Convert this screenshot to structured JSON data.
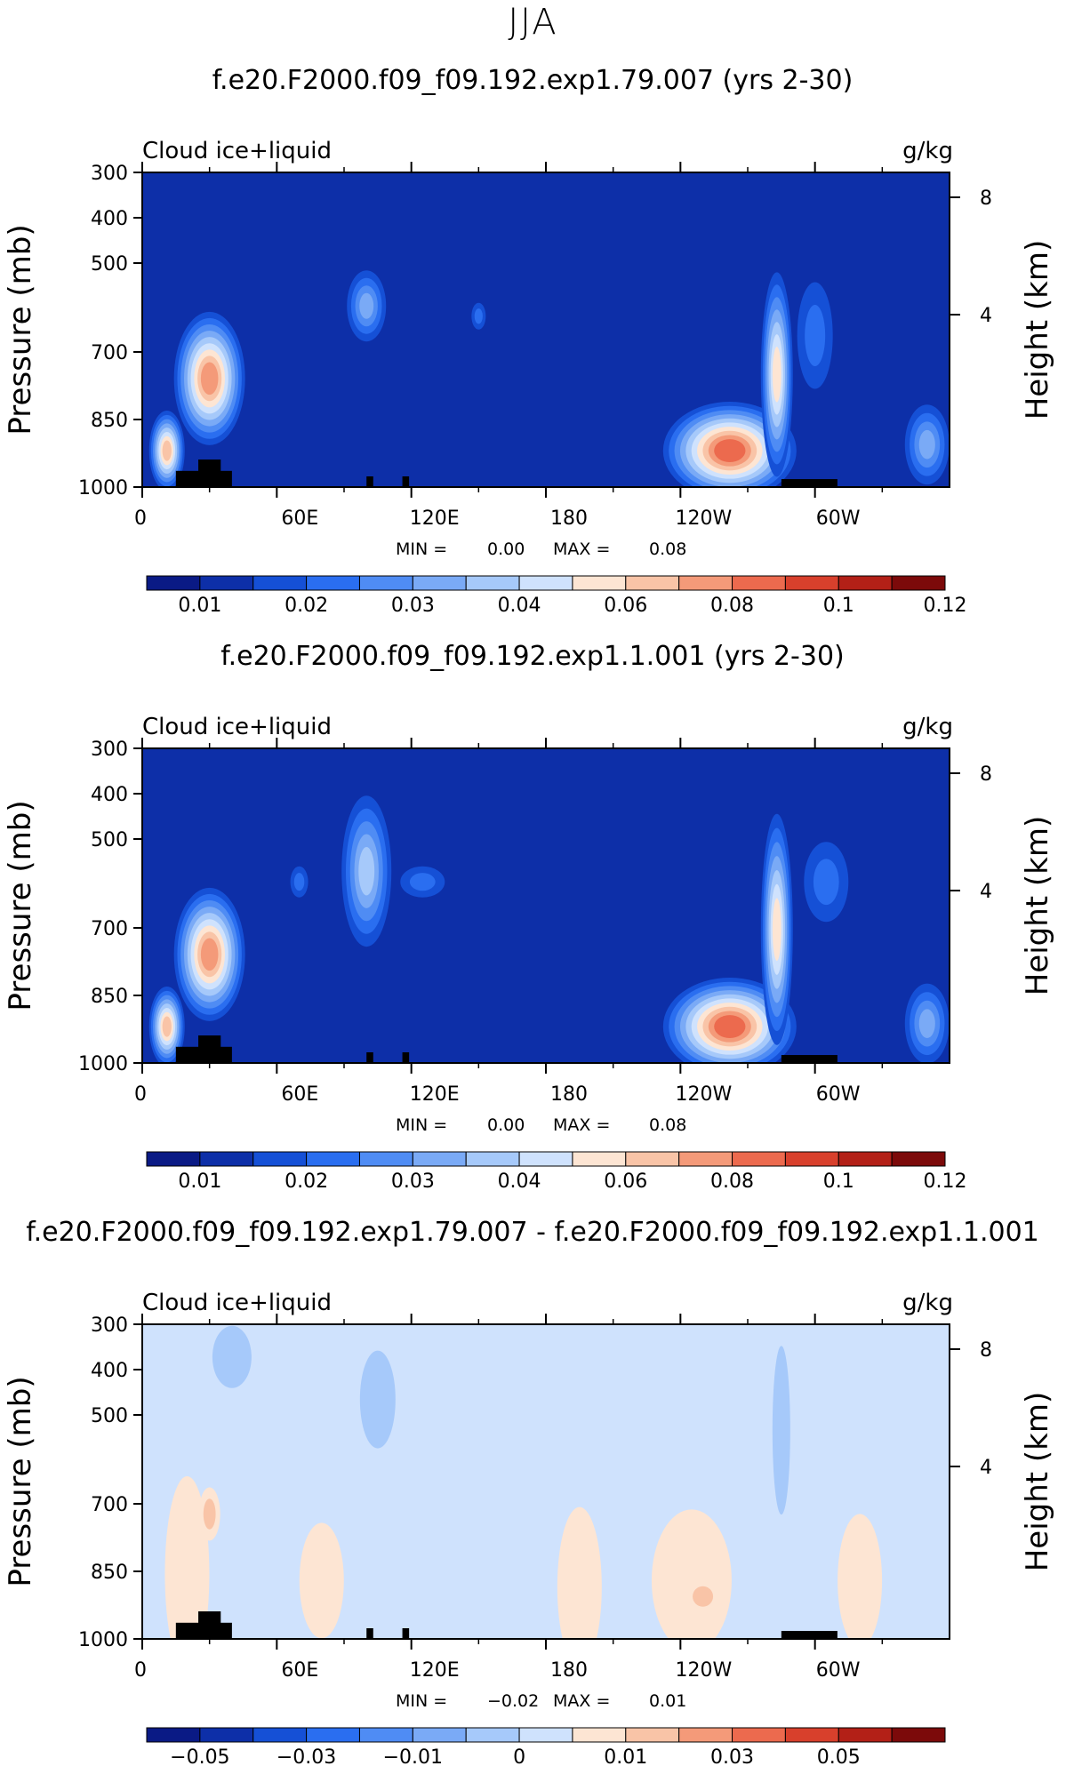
{
  "main_title": "JJA",
  "colors": {
    "abs_scale": [
      "#0a1a85",
      "#0d2fa8",
      "#1550d6",
      "#2a6ef0",
      "#4f8cf4",
      "#7aaaf6",
      "#a6c9fa",
      "#cfe2fd",
      "#fde5d3",
      "#f9c4a7",
      "#f49a79",
      "#ec6a4e",
      "#d8402c",
      "#b32017",
      "#7c0a0a"
    ],
    "diff_scale": [
      "#0a1a85",
      "#0d2fa8",
      "#1550d6",
      "#2a6ef0",
      "#4f8cf4",
      "#7aaaf6",
      "#a6c9fa",
      "#cfe2fd",
      "#fde5d3",
      "#f9c4a7",
      "#f49a79",
      "#ec6a4e",
      "#d8402c",
      "#b32017",
      "#7c0a0a"
    ],
    "land": "#000000"
  },
  "chart_data": [
    {
      "type": "heatmap",
      "title": "f.e20.F2000.f09_f09.192.exp1.79.007 (yrs 2-30)",
      "left_label": "Cloud ice+liquid",
      "units": "g/kg",
      "ylabel": "Pressure (mb)",
      "ylabel2": "Height (km)",
      "yticks": [
        "300",
        "400",
        "500",
        "700",
        "850",
        "1000"
      ],
      "yticks2": [
        "8",
        "4"
      ],
      "xticks": [
        "0",
        "60E",
        "120E",
        "180",
        "120W",
        "60W"
      ],
      "min_label": "MIN =",
      "min_value": "0.00",
      "max_label": "MAX =",
      "max_value": "0.08",
      "colorbar_labels": [
        "0.01",
        "0.02",
        "0.03",
        "0.04",
        "0.06",
        "0.08",
        "0.1",
        "0.12"
      ],
      "scale": "abs_scale",
      "features": [
        {
          "lon": 11,
          "p": 870,
          "level": 9,
          "w": 20,
          "h": 90
        },
        {
          "lon": 30,
          "p": 660,
          "level": 10,
          "w": 40,
          "h": 150
        },
        {
          "lon": 100,
          "p": 500,
          "level": 5,
          "w": 22,
          "h": 80
        },
        {
          "lon": 150,
          "p": 520,
          "level": 3,
          "w": 8,
          "h": 30
        },
        {
          "lon": 262,
          "p": 870,
          "level": 11,
          "w": 75,
          "h": 110
        },
        {
          "lon": 283,
          "p": 650,
          "level": 8,
          "w": 18,
          "h": 230
        },
        {
          "lon": 300,
          "p": 560,
          "level": 3,
          "w": 20,
          "h": 120
        },
        {
          "lon": 350,
          "p": 850,
          "level": 5,
          "w": 25,
          "h": 90
        }
      ],
      "land": [
        {
          "lon0": 15,
          "lon1": 40,
          "p0": 940,
          "p1": 1000
        },
        {
          "lon0": 25,
          "lon1": 35,
          "p0": 900,
          "p1": 1000
        },
        {
          "lon0": 285,
          "lon1": 310,
          "p0": 970,
          "p1": 1000
        }
      ]
    },
    {
      "type": "heatmap",
      "title": "f.e20.F2000.f09_f09.192.exp1.1.001 (yrs 2-30)",
      "left_label": "Cloud ice+liquid",
      "units": "g/kg",
      "ylabel": "Pressure (mb)",
      "ylabel2": "Height (km)",
      "yticks": [
        "300",
        "400",
        "500",
        "700",
        "850",
        "1000"
      ],
      "yticks2": [
        "8",
        "4"
      ],
      "xticks": [
        "0",
        "60E",
        "120E",
        "180",
        "120W",
        "60W"
      ],
      "min_label": "MIN =",
      "min_value": "0.00",
      "max_label": "MAX =",
      "max_value": "0.08",
      "colorbar_labels": [
        "0.01",
        "0.02",
        "0.03",
        "0.04",
        "0.06",
        "0.08",
        "0.1",
        "0.12"
      ],
      "scale": "abs_scale",
      "features": [
        {
          "lon": 11,
          "p": 870,
          "level": 9,
          "w": 20,
          "h": 90
        },
        {
          "lon": 30,
          "p": 660,
          "level": 10,
          "w": 40,
          "h": 150
        },
        {
          "lon": 100,
          "p": 480,
          "level": 6,
          "w": 28,
          "h": 170
        },
        {
          "lon": 125,
          "p": 500,
          "level": 3,
          "w": 25,
          "h": 35
        },
        {
          "lon": 70,
          "p": 500,
          "level": 3,
          "w": 10,
          "h": 35
        },
        {
          "lon": 262,
          "p": 870,
          "level": 11,
          "w": 75,
          "h": 110
        },
        {
          "lon": 283,
          "p": 600,
          "level": 8,
          "w": 18,
          "h": 260
        },
        {
          "lon": 305,
          "p": 500,
          "level": 3,
          "w": 25,
          "h": 90
        },
        {
          "lon": 350,
          "p": 860,
          "level": 5,
          "w": 25,
          "h": 90
        }
      ],
      "land": [
        {
          "lon0": 15,
          "lon1": 40,
          "p0": 940,
          "p1": 1000
        },
        {
          "lon0": 25,
          "lon1": 35,
          "p0": 900,
          "p1": 1000
        },
        {
          "lon0": 285,
          "lon1": 310,
          "p0": 970,
          "p1": 1000
        }
      ]
    },
    {
      "type": "heatmap",
      "title": "f.e20.F2000.f09_f09.192.exp1.79.007 - f.e20.F2000.f09_f09.192.exp1.1.001",
      "left_label": "Cloud ice+liquid",
      "units": "g/kg",
      "ylabel": "Pressure (mb)",
      "ylabel2": "Height (km)",
      "yticks": [
        "300",
        "400",
        "500",
        "700",
        "850",
        "1000"
      ],
      "yticks2": [
        "8",
        "4"
      ],
      "xticks": [
        "0",
        "60E",
        "120E",
        "180",
        "120W",
        "60W"
      ],
      "min_label": "MIN =",
      "min_value": "−0.02",
      "max_label": "MAX =",
      "max_value": "0.01",
      "colorbar_labels": [
        "−0.05",
        "−0.03",
        "−0.01",
        "0",
        "0.01",
        "0.03",
        "0.05"
      ],
      "scale": "diff_scale",
      "background_level": 7,
      "features": [
        {
          "lon": 20,
          "p": 780,
          "level": 8,
          "w": 25,
          "h": 220
        },
        {
          "lon": 30,
          "p": 620,
          "level": 9,
          "w": 12,
          "h": 60
        },
        {
          "lon": 80,
          "p": 800,
          "level": 8,
          "w": 25,
          "h": 130
        },
        {
          "lon": 195,
          "p": 820,
          "level": 8,
          "w": 25,
          "h": 180
        },
        {
          "lon": 245,
          "p": 800,
          "level": 8,
          "w": 45,
          "h": 160
        },
        {
          "lon": 250,
          "p": 850,
          "level": 9,
          "w": 20,
          "h": 40
        },
        {
          "lon": 320,
          "p": 800,
          "level": 8,
          "w": 25,
          "h": 150
        },
        {
          "lon": 40,
          "p": 340,
          "level": 6,
          "w": 22,
          "h": 70
        },
        {
          "lon": 105,
          "p": 400,
          "level": 6,
          "w": 20,
          "h": 110
        },
        {
          "lon": 285,
          "p": 450,
          "level": 6,
          "w": 10,
          "h": 190
        }
      ],
      "land": [
        {
          "lon0": 15,
          "lon1": 40,
          "p0": 940,
          "p1": 1000
        },
        {
          "lon0": 25,
          "lon1": 35,
          "p0": 900,
          "p1": 1000
        },
        {
          "lon0": 285,
          "lon1": 310,
          "p0": 970,
          "p1": 1000
        }
      ]
    }
  ]
}
